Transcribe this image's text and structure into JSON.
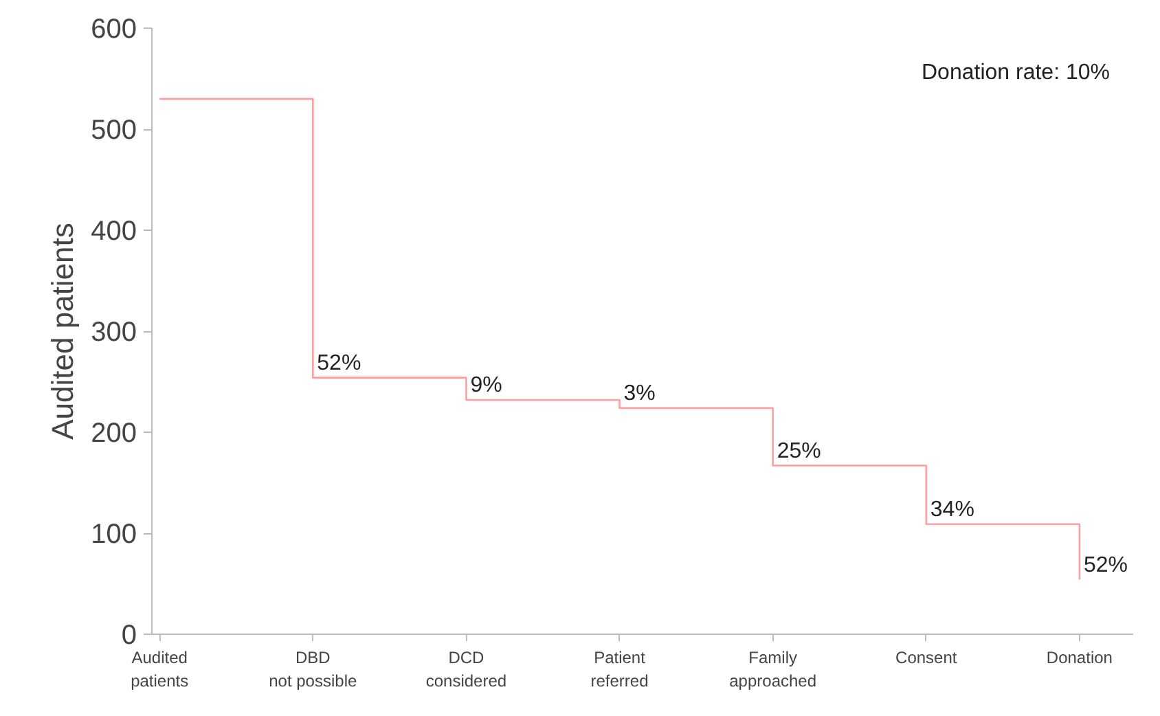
{
  "chart_data": {
    "type": "step",
    "ylabel": "Audited patients",
    "categories": [
      "Audited patients",
      "DBD not possible",
      "DCD considered",
      "Patient referred",
      "Family approached",
      "Consent",
      "Donation"
    ],
    "values": [
      530,
      254,
      232,
      224,
      167,
      109,
      54
    ],
    "color": "#ff9e9e",
    "ylim": [
      0,
      600
    ],
    "yticks": [
      0,
      100,
      200,
      300,
      400,
      500,
      600
    ],
    "grid": false,
    "annotations": [
      {
        "text": "52%",
        "x": "DBD not possible",
        "y": 254
      },
      {
        "text": "9%",
        "x": "DCD considered",
        "y": 232
      },
      {
        "text": "3%",
        "x": "Patient referred",
        "y": 224
      },
      {
        "text": "25%",
        "x": "Family approached",
        "y": 167
      },
      {
        "text": "34%",
        "x": "Consent",
        "y": 109
      },
      {
        "text": "52%",
        "x": "Donation",
        "y": 54
      },
      "Donation rate: 10%"
    ]
  }
}
